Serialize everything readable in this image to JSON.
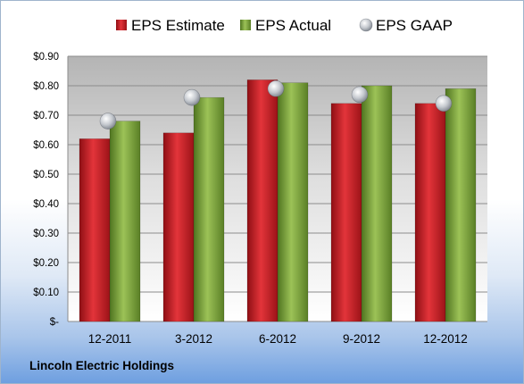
{
  "chart_data": {
    "type": "bar",
    "categories": [
      "12-2011",
      "3-2012",
      "6-2012",
      "9-2012",
      "12-2012"
    ],
    "series": [
      {
        "name": "EPS Estimate",
        "type": "bar",
        "values": [
          0.62,
          0.64,
          0.82,
          0.74,
          0.74
        ],
        "color": "#d8262d"
      },
      {
        "name": "EPS Actual",
        "type": "bar",
        "values": [
          0.68,
          0.76,
          0.81,
          0.8,
          0.79
        ],
        "color": "#7fa83c"
      },
      {
        "name": "EPS GAAP",
        "type": "scatter",
        "values": [
          0.68,
          0.76,
          0.79,
          0.77,
          0.74
        ],
        "color": "#b9bec6"
      }
    ],
    "yticks": [
      "$-",
      "$0.10",
      "$0.20",
      "$0.30",
      "$0.40",
      "$0.50",
      "$0.60",
      "$0.70",
      "$0.80",
      "$0.90"
    ],
    "ylim": [
      0,
      0.9
    ],
    "grid": true,
    "legend_position": "top"
  },
  "company": "Lincoln Electric Holdings"
}
